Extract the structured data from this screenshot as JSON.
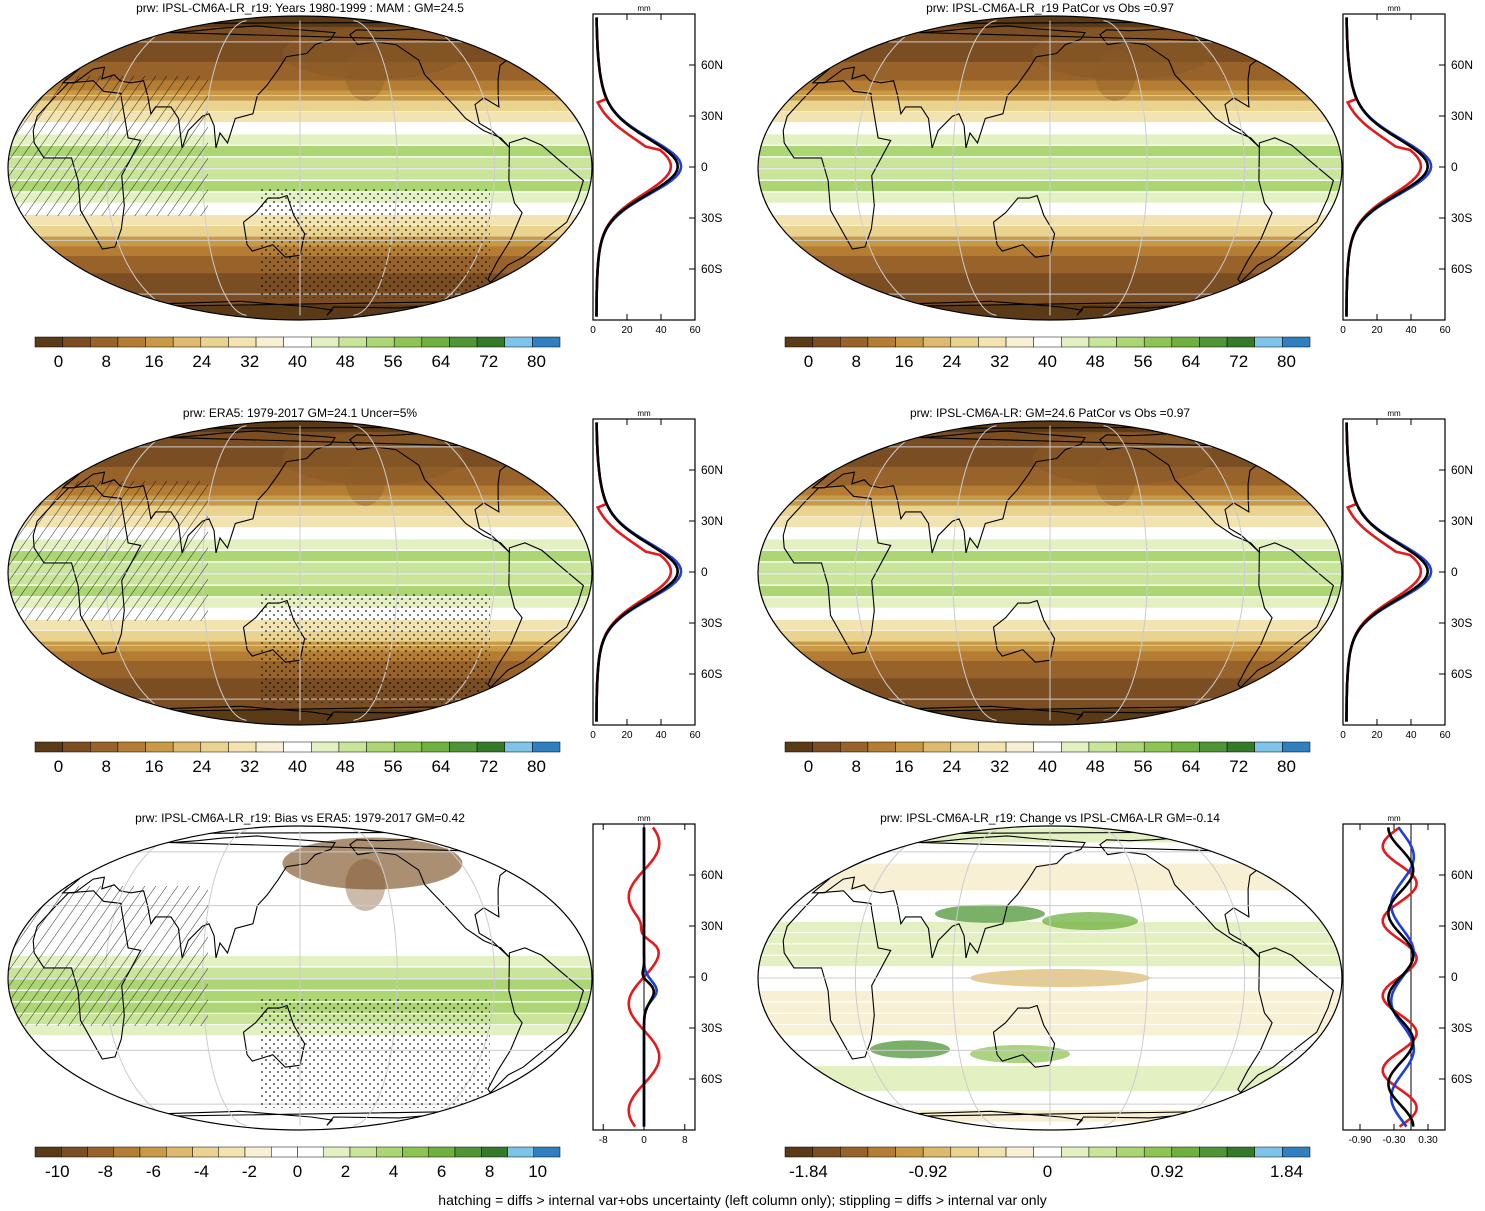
{
  "footnote": "hatching = diffs > internal var+obs uncertainty (left column only); stippling = diffs > internal var only",
  "profile_axis_label": "mm",
  "lat_ticks": [
    "60N",
    "30N",
    "0",
    "30S",
    "60S"
  ],
  "palettes": {
    "brown_green": [
      "#5a3a17",
      "#7a4e22",
      "#98622b",
      "#b57d34",
      "#c99a46",
      "#ddba6e",
      "#ead38f",
      "#f2e3b1",
      "#f8f0d4",
      "#ffffff",
      "#e3f0c2",
      "#c9e59a",
      "#acd574",
      "#8ec552",
      "#6fb03f",
      "#4f9535",
      "#357a2b",
      "#7ec3e8",
      "#2f7fc1"
    ],
    "bias": [
      "#5a3a17",
      "#7a4e22",
      "#98622b",
      "#b57d34",
      "#c99a46",
      "#ddba6e",
      "#ead38f",
      "#f2e3b1",
      "#f8f0d4",
      "#ffffff",
      "#ffffff",
      "#e3f0c2",
      "#c9e59a",
      "#acd574",
      "#8ec552",
      "#6fb03f",
      "#4f9535",
      "#357a2b",
      "#7ec3e8",
      "#2f7fc1"
    ]
  },
  "line_colors": {
    "red": "#e41a1c",
    "blue": "#1f3fd8",
    "black": "#000000"
  },
  "panels": [
    {
      "title": "prw: IPSL-CM6A-LR_r19: Years 1980-1999 : MAM : GM=24.5",
      "field": "clim",
      "hatch": true,
      "colorbar": {
        "palette": "brown_green",
        "labels": [
          "0",
          "8",
          "16",
          "24",
          "32",
          "40",
          "48",
          "56",
          "64",
          "72",
          "80"
        ]
      },
      "profile": {
        "xlim": [
          0,
          60
        ],
        "xticks": [
          "0",
          "20",
          "40",
          "60"
        ]
      }
    },
    {
      "title": "prw: IPSL-CM6A-LR_r19 PatCor vs Obs =0.97",
      "field": "clim",
      "hatch": false,
      "colorbar": {
        "palette": "brown_green",
        "labels": [
          "0",
          "8",
          "16",
          "24",
          "32",
          "40",
          "48",
          "56",
          "64",
          "72",
          "80"
        ]
      },
      "profile": {
        "xlim": [
          0,
          60
        ],
        "xticks": [
          "0",
          "20",
          "40",
          "60"
        ]
      }
    },
    {
      "title": "prw: ERA5: 1979-2017 GM=24.1 Uncer=5%",
      "field": "clim",
      "hatch": true,
      "colorbar": {
        "palette": "brown_green",
        "labels": [
          "0",
          "8",
          "16",
          "24",
          "32",
          "40",
          "48",
          "56",
          "64",
          "72",
          "80"
        ]
      },
      "profile": {
        "xlim": [
          0,
          60
        ],
        "xticks": [
          "0",
          "20",
          "40",
          "60"
        ]
      }
    },
    {
      "title": "prw: IPSL-CM6A-LR: GM=24.6 PatCor vs Obs =0.97",
      "field": "clim",
      "hatch": false,
      "colorbar": {
        "palette": "brown_green",
        "labels": [
          "0",
          "8",
          "16",
          "24",
          "32",
          "40",
          "48",
          "56",
          "64",
          "72",
          "80"
        ]
      },
      "profile": {
        "xlim": [
          0,
          60
        ],
        "xticks": [
          "0",
          "20",
          "40",
          "60"
        ]
      }
    },
    {
      "title": "prw: IPSL-CM6A-LR_r19: Bias vs ERA5: 1979-2017 GM=0.42",
      "field": "bias",
      "hatch": true,
      "colorbar": {
        "palette": "bias",
        "labels": [
          "-10",
          "-8",
          "-6",
          "-4",
          "-2",
          "0",
          "2",
          "4",
          "6",
          "8",
          "10"
        ]
      },
      "profile": {
        "xlim": [
          -10,
          10
        ],
        "xticks": [
          "-8",
          "0",
          "8"
        ]
      }
    },
    {
      "title": "prw: IPSL-CM6A-LR_r19: Change vs IPSL-CM6A-LR GM=-0.14",
      "field": "change",
      "hatch": false,
      "colorbar": {
        "palette": "brown_green",
        "labels": [
          "-1.84",
          "-0.92",
          "0",
          "0.92",
          "1.84"
        ]
      },
      "profile": {
        "xlim": [
          -1.2,
          0.6
        ],
        "xticks": [
          "-0.90",
          "-0.30",
          "0.30"
        ]
      }
    }
  ]
}
